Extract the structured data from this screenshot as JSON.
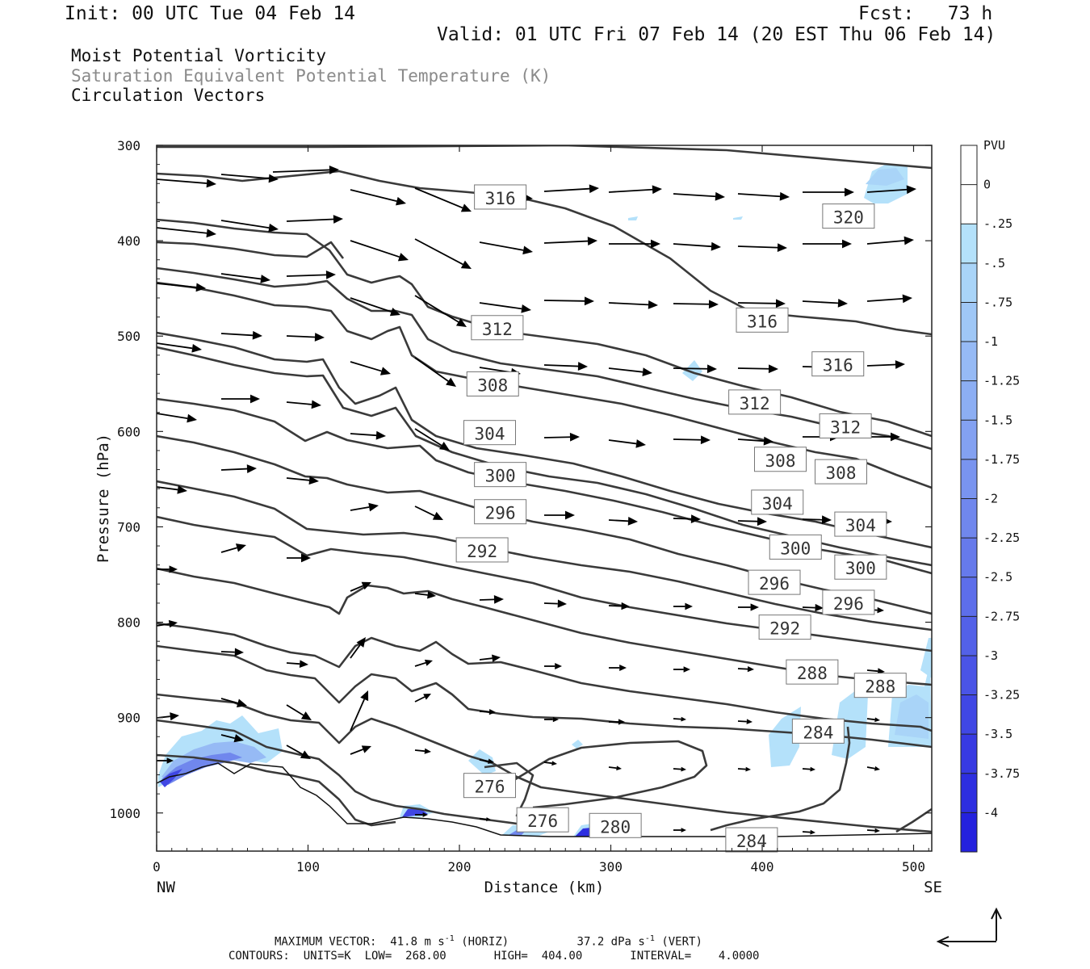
{
  "header": {
    "init": "Init: 00 UTC Tue 04 Feb 14",
    "fcst": "Fcst:   73 h",
    "valid": "Valid: 01 UTC Fri 07 Feb 14 (20 EST Thu 06 Feb 14)"
  },
  "legend": {
    "line1": "Moist Potential Vorticity",
    "line2": "Saturation Equivalent Potential Temperature (K)",
    "line3": "Circulation Vectors",
    "line2_color": "#8a8a8a"
  },
  "footer": {
    "max_vector_label": "MAXIMUM VECTOR:",
    "horiz_value": "41.8 m s",
    "horiz_exp": "-1",
    "horiz_unit": "(HORIZ)",
    "vert_value": "37.2 dPa s",
    "vert_exp": "-1",
    "vert_unit": "(VERT)",
    "contours": "CONTOURS:  UNITS=K  LOW=  268.00       HIGH=  404.00       INTERVAL=    4.0000"
  },
  "chart_data": {
    "type": "cross-section",
    "xlabel": "Distance (km)",
    "ylabel": "Pressure (hPa)",
    "xlim": [
      0,
      512
    ],
    "ylim": [
      300,
      1040
    ],
    "x_ticks": [
      "0",
      "100",
      "200",
      "300",
      "400",
      "500"
    ],
    "y_ticks": [
      "300",
      "400",
      "500",
      "600",
      "700",
      "800",
      "900",
      "1000"
    ],
    "x_end_labels": {
      "left": "NW",
      "right": "SE"
    },
    "colorbar": {
      "title": "PVU",
      "labels": [
        "0",
        "-.25",
        "-.5",
        "-.75",
        "-1",
        "-1.25",
        "-1.5",
        "-1.75",
        "-2",
        "-2.25",
        "-2.5",
        "-2.75",
        "-3",
        "-3.25",
        "-3.5",
        "-3.75",
        "-4"
      ],
      "colors": [
        "#ffffff",
        "#ffffff",
        "#b4e1fa",
        "#a9d4f8",
        "#9fc7f6",
        "#96baf5",
        "#8caef3",
        "#83a1f1",
        "#7994ef",
        "#7087ed",
        "#667aeb",
        "#5d6eea",
        "#5361e8",
        "#4a54e6",
        "#4047e4",
        "#373ae2",
        "#2d2ee0",
        "#2421de"
      ]
    },
    "contour_labels": [
      {
        "text": "316",
        "x": 227,
        "p": 355
      },
      {
        "text": "320",
        "x": 457,
        "p": 375
      },
      {
        "text": "312",
        "x": 225,
        "p": 492
      },
      {
        "text": "316",
        "x": 400,
        "p": 484
      },
      {
        "text": "316",
        "x": 450,
        "p": 530
      },
      {
        "text": "308",
        "x": 222,
        "p": 551
      },
      {
        "text": "312",
        "x": 395,
        "p": 570
      },
      {
        "text": "312",
        "x": 455,
        "p": 595
      },
      {
        "text": "304",
        "x": 220,
        "p": 602
      },
      {
        "text": "308",
        "x": 412,
        "p": 630
      },
      {
        "text": "308",
        "x": 452,
        "p": 643
      },
      {
        "text": "300",
        "x": 227,
        "p": 646
      },
      {
        "text": "304",
        "x": 410,
        "p": 675
      },
      {
        "text": "296",
        "x": 227,
        "p": 685
      },
      {
        "text": "304",
        "x": 465,
        "p": 698
      },
      {
        "text": "292",
        "x": 215,
        "p": 725
      },
      {
        "text": "300",
        "x": 422,
        "p": 722
      },
      {
        "text": "300",
        "x": 465,
        "p": 743
      },
      {
        "text": "296",
        "x": 408,
        "p": 759
      },
      {
        "text": "296",
        "x": 457,
        "p": 780
      },
      {
        "text": "292",
        "x": 415,
        "p": 806
      },
      {
        "text": "288",
        "x": 433,
        "p": 853
      },
      {
        "text": "288",
        "x": 478,
        "p": 867
      },
      {
        "text": "284",
        "x": 437,
        "p": 915
      },
      {
        "text": "276",
        "x": 220,
        "p": 972
      },
      {
        "text": "276",
        "x": 255,
        "p": 1008
      },
      {
        "text": "280",
        "x": 303,
        "p": 1014
      },
      {
        "text": "284",
        "x": 393,
        "p": 1029
      }
    ]
  }
}
